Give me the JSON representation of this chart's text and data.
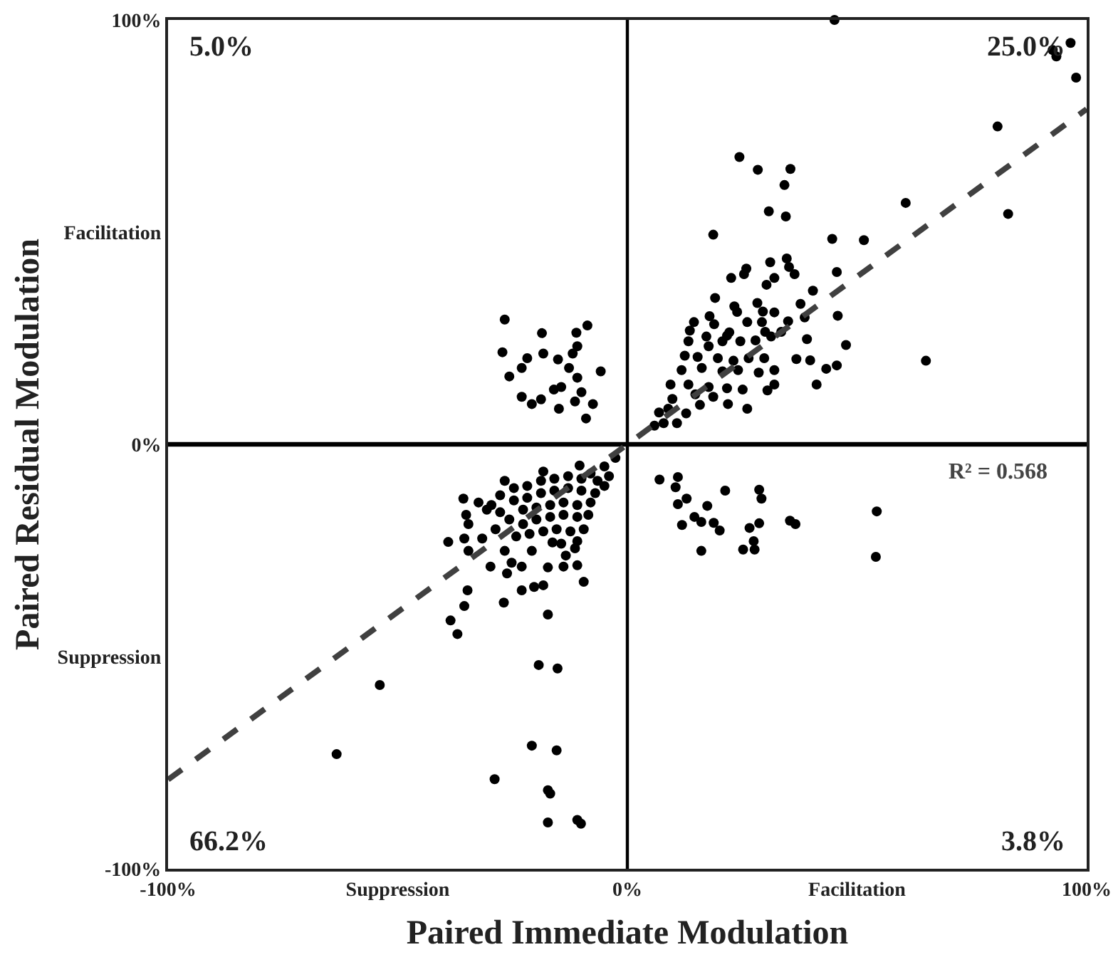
{
  "chart_data": {
    "type": "scatter",
    "xlabel": "Paired Immediate Modulation",
    "ylabel": "Paired Residual Modulation",
    "xlim": [
      -100,
      100
    ],
    "ylim": [
      -100,
      100
    ],
    "xticks": [
      {
        "value": -100,
        "label": "-100%"
      },
      {
        "value": -50,
        "label": "Suppression"
      },
      {
        "value": 0,
        "label": "0%"
      },
      {
        "value": 50,
        "label": "Facilitation"
      },
      {
        "value": 100,
        "label": "100%"
      }
    ],
    "yticks": [
      {
        "value": -100,
        "label": "-100%"
      },
      {
        "value": -50,
        "label": "Suppression"
      },
      {
        "value": 0,
        "label": "0%"
      },
      {
        "value": 50,
        "label": "Facilitation"
      },
      {
        "value": 100,
        "label": "100%"
      }
    ],
    "grid": false,
    "ref_lines": [
      {
        "axis": "x",
        "value": 0,
        "color": "#000000"
      },
      {
        "axis": "y",
        "value": 0,
        "color": "#000000"
      }
    ],
    "annotations": [
      "5.0%",
      "25.0%",
      "66.2%",
      "3.8%",
      "R² = 0.568"
    ],
    "series": [
      {
        "marker": "circle",
        "color": "#000000",
        "x": [
          45.1,
          92.6,
          93.4,
          96.5,
          97.7,
          80.6,
          82.9,
          60.6,
          65.0,
          24.4,
          28.4,
          35.5,
          34.2,
          30.8,
          34.5,
          18.7,
          44.6,
          51.5,
          45.6,
          40.4,
          45.8,
          47.6,
          39.1,
          36.8,
          39.8,
          45.6,
          43.3,
          41.2,
          37.7,
          38.6,
          35.0,
          34.7,
          35.2,
          36.4,
          31.1,
          32.0,
          30.3,
          25.4,
          25.9,
          22.6,
          19.1,
          28.3,
          23.3,
          23.9,
          17.9,
          14.5,
          18.9,
          22.2,
          21.7,
          26.1,
          29.5,
          32.0,
          29.3,
          30.0,
          33.5,
          13.6,
          13.3,
          17.2,
          20.7,
          24.6,
          27.9,
          31.3,
          17.7,
          12.5,
          15.3,
          19.7,
          23.1,
          26.4,
          29.8,
          11.8,
          16.2,
          20.7,
          24.1,
          28.6,
          32.0,
          32.0,
          30.5,
          9.4,
          13.3,
          17.7,
          21.7,
          25.1,
          9.8,
          15.8,
          21.9,
          26.1,
          6.9,
          8.9,
          10.8,
          7.9,
          5.9,
          12.8,
          18.7,
          14.8,
          -26.7,
          -27.2,
          -18.6,
          -8.7,
          -11.1,
          -10.9,
          -18.3,
          -21.8,
          -15.1,
          -11.9,
          -23.0,
          -25.7,
          -12.7,
          -5.8,
          -10.9,
          -16.0,
          -14.4,
          -23.0,
          -20.8,
          -18.8,
          -10.0,
          -11.4,
          -7.5,
          -14.9,
          -9.0,
          7.0,
          11.0,
          10.5,
          12.9,
          11.0,
          21.3,
          28.7,
          29.2,
          17.4,
          14.6,
          16.1,
          18.8,
          20.1,
          11.9,
          26.6,
          28.7,
          35.4,
          36.6,
          27.5,
          25.2,
          27.7,
          16.1,
          54.3,
          54.1,
          -39.0,
          -53.9,
          -63.3,
          -28.9,
          -20.8,
          -15.4,
          -17.3,
          -16.8,
          -17.3,
          -10.9,
          -10.1,
          -19.3,
          -15.2,
          -17.3,
          -26.9,
          -34.8,
          -35.5,
          -38.5,
          -37.0,
          -9.5,
          -23.0,
          -20.3,
          -18.3,
          -26.2,
          -29.8,
          -25.2,
          -23.0,
          -17.3,
          -13.9,
          -10.9,
          -13.4,
          -34.6,
          -35.5,
          -31.6,
          -26.7,
          -20.8,
          -16.3,
          -11.4,
          -35.7,
          -32.4,
          -35.1,
          -34.6,
          -30.6,
          -26.7,
          -18.3,
          -10.4,
          -2.6,
          -5.0,
          -8.0,
          -6.5,
          -10.0,
          -12.9,
          -15.9,
          -18.8,
          -21.8,
          -24.7,
          -27.7,
          -29.6,
          -27.7,
          -24.7,
          -21.8,
          -18.8,
          -15.9,
          -12.9,
          -10.0,
          -7.0,
          -5.0,
          -4.0,
          -8.0,
          -10.9,
          -13.9,
          -16.8,
          -19.8,
          -22.7,
          -25.7,
          -22.7,
          -19.8,
          -16.8,
          -13.9,
          -10.9,
          -8.5,
          -9.5,
          -12.4,
          -15.4,
          -18.3,
          -21.3,
          -24.2,
          -28.7,
          -10.9,
          -14.4
        ],
        "values": [
          100,
          92.9,
          91.4,
          94.6,
          86.4,
          74.9,
          54.3,
          56.9,
          19.7,
          67.7,
          64.7,
          64.9,
          61.1,
          54.9,
          53.7,
          49.4,
          48.4,
          48.1,
          40.6,
          36.2,
          30.3,
          23.4,
          24.8,
          20.1,
          19.8,
          18.6,
          17.8,
          14.1,
          33.1,
          29.9,
          29.0,
          43.8,
          41.8,
          40.1,
          42.9,
          39.2,
          37.6,
          40.1,
          41.4,
          39.2,
          34.5,
          33.3,
          32.5,
          31.2,
          30.2,
          28.8,
          28.3,
          26.4,
          25.6,
          28.8,
          31.3,
          31.1,
          28.8,
          26.5,
          26.5,
          26.8,
          24.3,
          25.4,
          24.3,
          24.3,
          24.5,
          25.4,
          23.1,
          20.9,
          20.6,
          20.3,
          19.7,
          20.3,
          20.3,
          17.5,
          18.0,
          17.2,
          17.5,
          16.9,
          17.5,
          14.1,
          12.7,
          14.1,
          14.1,
          13.5,
          13.2,
          12.9,
          10.7,
          9.3,
          9.5,
          8.4,
          7.5,
          8.4,
          5.0,
          5.0,
          4.4,
          7.3,
          11.2,
          11.8,
          29.4,
          21.7,
          26.2,
          28.0,
          26.3,
          23.1,
          21.4,
          20.3,
          20.0,
          21.4,
          18.0,
          16.0,
          18.0,
          17.2,
          15.7,
          12.9,
          13.5,
          11.2,
          9.5,
          10.6,
          12.3,
          10.1,
          9.5,
          8.4,
          6.1,
          -8.3,
          -7.7,
          -10.1,
          -12.8,
          -14.1,
          -10.9,
          -10.7,
          -12.8,
          -14.5,
          -17.1,
          -18.3,
          -18.5,
          -20.3,
          -19.0,
          -19.7,
          -18.6,
          -18.0,
          -18.8,
          -22.8,
          -24.8,
          -24.8,
          -25.1,
          -15.8,
          -26.5,
          -23.0,
          -56.7,
          -73.0,
          -78.9,
          -71.0,
          -72.1,
          -81.5,
          -82.3,
          -89.1,
          -88.5,
          -89.4,
          -52.0,
          -52.8,
          -40.1,
          -37.3,
          -34.4,
          -38.1,
          -41.5,
          -44.7,
          -32.4,
          -34.4,
          -33.6,
          -33.2,
          -30.4,
          -28.8,
          -27.9,
          -28.8,
          -29.0,
          -28.8,
          -28.5,
          -26.2,
          -25.1,
          -22.2,
          -22.2,
          -25.1,
          -25.1,
          -23.1,
          -24.5,
          -12.8,
          -13.7,
          -16.6,
          -18.8,
          -15.4,
          -8.6,
          -6.4,
          -5.0,
          -3.2,
          -5.2,
          -6.9,
          -8.6,
          -8.1,
          -7.5,
          -8.1,
          -8.6,
          -9.8,
          -10.3,
          -12.0,
          -14.3,
          -16.0,
          -13.2,
          -12.6,
          -11.5,
          -10.9,
          -10.3,
          -10.9,
          -11.5,
          -9.8,
          -7.5,
          -13.7,
          -14.3,
          -13.7,
          -14.3,
          -14.9,
          -15.4,
          -17.7,
          -18.8,
          -17.7,
          -17.1,
          -16.6,
          -17.1,
          -16.6,
          -20.0,
          -20.5,
          -20.0,
          -20.5,
          -21.1,
          -21.7,
          -20.0,
          -22.8,
          -23.4
        ]
      },
      {
        "type": "line",
        "color": "#404040",
        "line_style": "dashed",
        "x": [
          -100,
          100
        ],
        "values": [
          -79,
          79
        ]
      }
    ]
  }
}
